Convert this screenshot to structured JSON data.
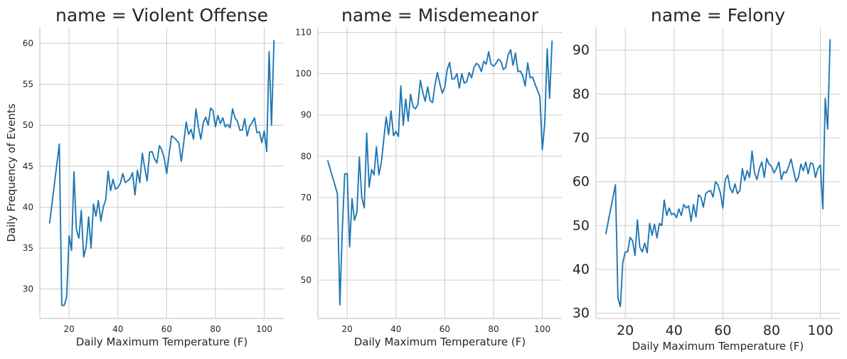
{
  "chart_data": {
    "type": "line",
    "color": "#1f77b4",
    "shared_xlabel": "Daily Maximum Temperature (F)",
    "shared_ylabel": "Daily Frequency of Events",
    "panels": [
      {
        "title": "name = Violent Offense",
        "xlabel": "Daily Maximum Temperature (F)",
        "ylabel": "Daily Frequency of Events",
        "xlim": [
          8,
          108
        ],
        "ylim": [
          26.4,
          62
        ],
        "xticks": [
          20,
          40,
          60,
          80,
          100
        ],
        "yticks": [
          30,
          35,
          40,
          45,
          50,
          55,
          60
        ],
        "grid": true,
        "x": [
          12,
          16,
          17,
          18,
          19,
          20,
          21,
          22,
          23,
          24,
          25,
          26,
          27,
          28,
          29,
          30,
          31,
          32,
          33,
          34,
          35,
          36,
          37,
          38,
          39,
          40,
          41,
          42,
          43,
          44,
          45,
          46,
          47,
          48,
          49,
          50,
          51,
          52,
          53,
          54,
          55,
          56,
          57,
          58,
          59,
          60,
          61,
          62,
          63,
          64,
          65,
          66,
          67,
          68,
          69,
          70,
          71,
          72,
          73,
          74,
          75,
          76,
          77,
          78,
          79,
          80,
          81,
          82,
          83,
          84,
          85,
          86,
          87,
          88,
          89,
          90,
          91,
          92,
          93,
          94,
          95,
          96,
          97,
          98,
          99,
          100,
          101,
          102,
          103,
          104
        ],
        "y": [
          38,
          47.7,
          28,
          28,
          29,
          36.5,
          34.7,
          44.3,
          37.3,
          36.2,
          39.6,
          33.9,
          35.2,
          38.8,
          35,
          40.4,
          38.9,
          40.8,
          38.3,
          40,
          40.9,
          44.4,
          42,
          43.4,
          42.2,
          42.4,
          42.9,
          44.1,
          43,
          43.2,
          43.5,
          44.2,
          41.5,
          44.5,
          43,
          46.6,
          44.8,
          43.2,
          46.7,
          46.8,
          45.9,
          45.4,
          47.5,
          47,
          46,
          44.1,
          46.5,
          48.7,
          48.5,
          48.2,
          47.8,
          45.6,
          47.9,
          50.4,
          48.9,
          49.5,
          48.3,
          52,
          49.8,
          48.3,
          50.3,
          51,
          50,
          52.1,
          51.8,
          49.8,
          51.2,
          50.2,
          50.9,
          49.8,
          50.1,
          49.7,
          52,
          50.9,
          50.5,
          49.4,
          49.4,
          50.8,
          48.7,
          49.9,
          50.3,
          50.9,
          49.1,
          49.2,
          47.9,
          49.3,
          46.8,
          59,
          50,
          60.4
        ]
      },
      {
        "title": "name = Misdemeanor",
        "xlabel": "Daily Maximum Temperature (F)",
        "ylabel": "",
        "xlim": [
          8,
          108
        ],
        "ylim": [
          40.7,
          111.3
        ],
        "xticks": [
          20,
          40,
          60,
          80,
          100
        ],
        "yticks": [
          50,
          60,
          70,
          80,
          90,
          100,
          110
        ],
        "grid": true,
        "x": [
          12,
          16,
          17,
          18,
          19,
          20,
          21,
          22,
          23,
          24,
          25,
          26,
          27,
          28,
          29,
          30,
          31,
          32,
          33,
          34,
          35,
          36,
          37,
          38,
          39,
          40,
          41,
          42,
          43,
          44,
          45,
          46,
          47,
          48,
          49,
          50,
          51,
          52,
          53,
          54,
          55,
          56,
          57,
          58,
          59,
          60,
          61,
          62,
          63,
          64,
          65,
          66,
          67,
          68,
          69,
          70,
          71,
          72,
          73,
          74,
          75,
          76,
          77,
          78,
          79,
          80,
          81,
          82,
          83,
          84,
          85,
          86,
          87,
          88,
          89,
          90,
          91,
          92,
          93,
          94,
          95,
          96,
          97,
          98,
          99,
          100,
          101,
          102,
          103,
          104
        ],
        "y": [
          79,
          71,
          44,
          62,
          75.7,
          75.8,
          58,
          69.7,
          64.5,
          66.5,
          79.8,
          70,
          67.5,
          85.6,
          72.5,
          76.8,
          75.5,
          82.3,
          75.5,
          78.5,
          84,
          89.5,
          85.2,
          91,
          85,
          86,
          84.8,
          97,
          87.5,
          93.8,
          88.5,
          95,
          92,
          91.5,
          92.5,
          98.4,
          95.5,
          93.3,
          96.8,
          93.5,
          93,
          97.2,
          100.3,
          97.5,
          95.3,
          96.7,
          101,
          102.7,
          98.7,
          98.8,
          100,
          96.5,
          100,
          97.7,
          98,
          100.3,
          99,
          101.5,
          102.5,
          102,
          100.5,
          103,
          102.3,
          105.3,
          102.3,
          101.8,
          102.5,
          103.5,
          103,
          101,
          101.5,
          104.5,
          105.8,
          102,
          105,
          100.5,
          100.6,
          99.5,
          97,
          102.6,
          99,
          99.2,
          97.5,
          96,
          94.5,
          81.6,
          88,
          106,
          94,
          108
        ]
      },
      {
        "title": "name = Felony",
        "xlabel": "Daily Maximum Temperature (F)",
        "ylabel": "",
        "xlim": [
          8,
          108
        ],
        "ylim": [
          28.8,
          95.3
        ],
        "xticks": [
          20,
          40,
          60,
          80,
          100
        ],
        "yticks": [
          30,
          40,
          50,
          60,
          70,
          80,
          90
        ],
        "grid": true,
        "x": [
          12,
          16,
          17,
          18,
          19,
          20,
          21,
          22,
          23,
          24,
          25,
          26,
          27,
          28,
          29,
          30,
          31,
          32,
          33,
          34,
          35,
          36,
          37,
          38,
          39,
          40,
          41,
          42,
          43,
          44,
          45,
          46,
          47,
          48,
          49,
          50,
          51,
          52,
          53,
          54,
          55,
          56,
          57,
          58,
          59,
          60,
          61,
          62,
          63,
          64,
          65,
          66,
          67,
          68,
          69,
          70,
          71,
          72,
          73,
          74,
          75,
          76,
          77,
          78,
          79,
          80,
          81,
          82,
          83,
          84,
          85,
          86,
          87,
          88,
          89,
          90,
          91,
          92,
          93,
          94,
          95,
          96,
          97,
          98,
          99,
          100,
          101,
          102,
          103,
          104
        ],
        "y": [
          48,
          59.3,
          33.5,
          31.5,
          41.5,
          44,
          44,
          47.3,
          46.5,
          43.2,
          51.3,
          45,
          44,
          46,
          43.8,
          50.5,
          47.8,
          50.3,
          47.2,
          50.5,
          50,
          55.8,
          52.3,
          54,
          52.5,
          52.8,
          51.8,
          53.8,
          52.3,
          54.8,
          54,
          54.5,
          51,
          54.8,
          52,
          57,
          56.5,
          54.2,
          57.3,
          57.8,
          58,
          56.5,
          60,
          59.3,
          57.5,
          54,
          60.5,
          61.5,
          58.5,
          57.5,
          59.5,
          57.3,
          58,
          63,
          60.3,
          62.5,
          61,
          67,
          62,
          60.5,
          63,
          64.5,
          61,
          65.3,
          64,
          63.5,
          62,
          63,
          64.5,
          60.5,
          62.3,
          62,
          63.5,
          65.2,
          62.5,
          60,
          61,
          64,
          62.5,
          64.5,
          61.8,
          64.3,
          64,
          61,
          63,
          63.8,
          53.8,
          79,
          72,
          92.5
        ]
      }
    ]
  }
}
